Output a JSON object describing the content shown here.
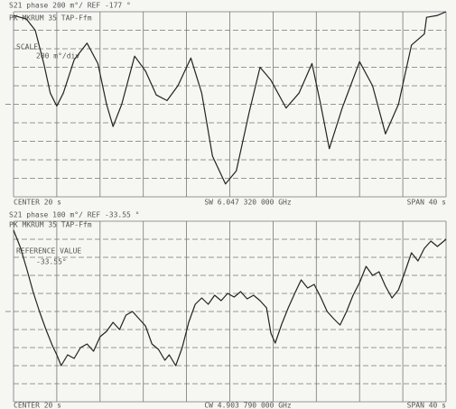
{
  "chart_data": [
    {
      "type": "line",
      "header": [
        "S21   phase   200 m°/   REF -177 °",
        "PK MKRUM 35 TAP-Ffm"
      ],
      "annotations": [
        "SCALE",
        "200 m°/div"
      ],
      "footer": [
        "CENTER 20 s",
        "SW 6.047 320 000 GHz",
        "SPAN 40 s"
      ],
      "x": [
        0,
        0.3,
        0.5,
        0.7,
        0.85,
        1.0,
        1.15,
        1.4,
        1.7,
        1.95,
        2.15,
        2.3,
        2.5,
        2.8,
        3.05,
        3.3,
        3.55,
        3.8,
        4.1,
        4.35,
        4.6,
        4.9,
        5.15,
        5.45,
        5.7,
        5.95,
        6.3,
        6.6,
        6.9,
        7.1,
        7.3,
        7.6,
        8.0,
        8.3,
        8.6,
        8.9,
        9.2,
        9.5,
        9.55,
        9.8,
        10
      ],
      "values": [
        9.8,
        9.6,
        9.0,
        7.2,
        5.6,
        4.9,
        5.6,
        7.4,
        8.3,
        7.2,
        5.0,
        3.8,
        5.0,
        7.6,
        6.8,
        5.5,
        5.2,
        6.0,
        7.5,
        5.6,
        2.2,
        0.7,
        1.4,
        4.6,
        7.0,
        6.3,
        4.8,
        5.6,
        7.2,
        5.0,
        2.6,
        4.8,
        7.3,
        6.0,
        3.4,
        5.0,
        8.2,
        8.8,
        9.7,
        9.8,
        10
      ],
      "xlim": [
        0,
        10
      ],
      "ylim": [
        0,
        10
      ],
      "xticks": [
        0,
        1,
        2,
        3,
        4,
        5,
        6,
        7,
        8,
        9,
        10
      ],
      "yticks": [
        0,
        1,
        2,
        3,
        4,
        5,
        6,
        7,
        8,
        9,
        10
      ],
      "grid": true,
      "color": "#222222"
    },
    {
      "type": "line",
      "header": [
        "S21   phase   100 m°/   REF -33.55 °",
        "PK MKRUM 35 TAP-Ffm"
      ],
      "annotations": [
        "REFERENCE VALUE",
        "-33.55°"
      ],
      "footer": [
        "CENTER 20 s",
        "CW 4.903 790 000 GHz",
        "SPAN 40 s"
      ],
      "x": [
        0,
        0.15,
        0.3,
        0.45,
        0.6,
        0.75,
        0.9,
        1.0,
        1.1,
        1.25,
        1.4,
        1.55,
        1.7,
        1.85,
        2.0,
        2.15,
        2.3,
        2.45,
        2.6,
        2.75,
        2.9,
        3.05,
        3.2,
        3.35,
        3.5,
        3.6,
        3.75,
        3.9,
        4.05,
        4.2,
        4.35,
        4.5,
        4.65,
        4.8,
        4.95,
        5.1,
        5.25,
        5.4,
        5.55,
        5.7,
        5.85,
        5.95,
        6.05,
        6.2,
        6.35,
        6.5,
        6.65,
        6.8,
        6.95,
        7.1,
        7.25,
        7.4,
        7.55,
        7.7,
        7.85,
        8.0,
        8.15,
        8.3,
        8.45,
        8.6,
        8.75,
        8.9,
        9.05,
        9.2,
        9.35,
        9.5,
        9.65,
        9.8,
        10
      ],
      "values": [
        9.5,
        8.6,
        7.4,
        6.1,
        5.0,
        4.0,
        3.1,
        2.6,
        2.0,
        2.6,
        2.4,
        3.0,
        3.2,
        2.8,
        3.6,
        3.9,
        4.4,
        4.0,
        4.8,
        5.0,
        4.6,
        4.2,
        3.2,
        2.9,
        2.3,
        2.6,
        2.0,
        3.0,
        4.4,
        5.4,
        5.75,
        5.4,
        5.9,
        5.6,
        6.0,
        5.8,
        6.1,
        5.7,
        5.9,
        5.6,
        5.2,
        3.8,
        3.25,
        4.3,
        5.2,
        6.0,
        6.75,
        6.3,
        6.5,
        5.8,
        5.0,
        4.6,
        4.25,
        5.0,
        5.9,
        6.6,
        7.5,
        7.0,
        7.2,
        6.4,
        5.75,
        6.2,
        7.2,
        8.25,
        7.8,
        8.5,
        8.9,
        8.6,
        9.0
      ],
      "xlim": [
        0,
        10
      ],
      "ylim": [
        0,
        10
      ],
      "xticks": [
        0,
        1,
        2,
        3,
        4,
        5,
        6,
        7,
        8,
        9,
        10
      ],
      "yticks": [
        0,
        1,
        2,
        3,
        4,
        5,
        6,
        7,
        8,
        9,
        10
      ],
      "grid": true,
      "color": "#222222"
    }
  ]
}
